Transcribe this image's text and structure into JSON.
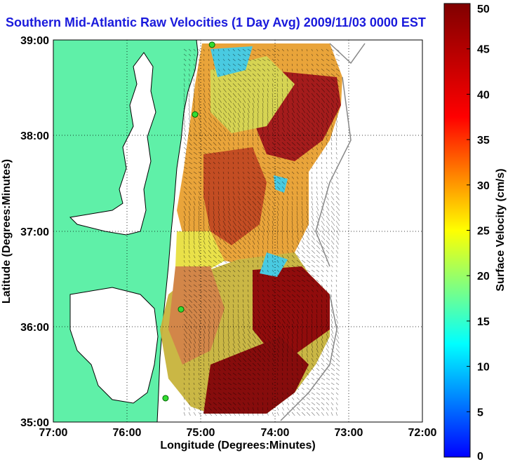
{
  "title": "Southern Mid-Atlantic Raw Velocities (1 Day Avg) 2009/11/03 0000 EST",
  "map": {
    "x_axis_label": "Longitude (Degrees:Minutes)",
    "y_axis_label": "Latitude (Degrees:Minutes)",
    "x_ticks": [
      "77:00",
      "76:00",
      "75:00",
      "74:00",
      "73:00",
      "72:00"
    ],
    "y_ticks": [
      "39:00",
      "38:00",
      "37:00",
      "36:00",
      "35:00"
    ],
    "lon_range": [
      -77,
      -72
    ],
    "lat_range": [
      35,
      39
    ],
    "land_color": "#5ff0a8",
    "grid": "dotted"
  },
  "colorbar": {
    "label": "Surface Velocity (cm/s)",
    "ticks": [
      "0",
      "5",
      "10",
      "15",
      "20",
      "25",
      "30",
      "35",
      "40",
      "45",
      "50"
    ],
    "min": 0,
    "max": 50,
    "colormap": "jet"
  },
  "stations": [
    {
      "lon": -74.85,
      "lat": 38.95
    },
    {
      "lon": -75.08,
      "lat": 38.22
    },
    {
      "lon": -75.27,
      "lat": 36.18
    },
    {
      "lon": -75.48,
      "lat": 35.25
    }
  ]
}
